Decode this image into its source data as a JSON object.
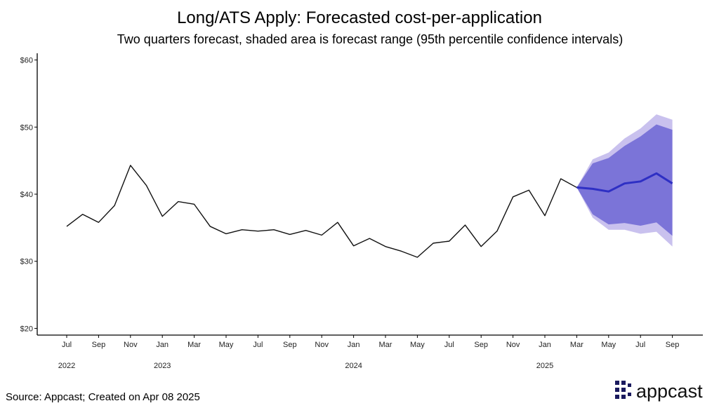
{
  "header": {
    "title": "Long/ATS Apply: Forecasted cost-per-application",
    "subtitle": "Two quarters forecast, shaded area is forecast range (95th percentile confidence intervals)"
  },
  "footer": {
    "source": "Source: Appcast; Created on Apr 08 2025",
    "logo_text": "appcast"
  },
  "colors": {
    "history": "#111111",
    "forecast_line": "#2e2fc4",
    "inner_band": "#7b74d8",
    "outer_band": "#c9c1ee"
  },
  "chart_data": {
    "type": "line",
    "x_unit": "month",
    "ylim": [
      19,
      61
    ],
    "y_ticks": [
      20,
      30,
      40,
      50,
      60
    ],
    "y_tick_labels": [
      "$20",
      "$30",
      "$40",
      "$50",
      "$60"
    ],
    "x_tick_labels": [
      "Jul",
      "Sep",
      "Nov",
      "Jan",
      "Mar",
      "May",
      "Jul",
      "Sep",
      "Nov",
      "Jan",
      "Mar",
      "May",
      "Jul",
      "Sep",
      "Nov",
      "Jan",
      "Mar",
      "May",
      "Jul",
      "Sep"
    ],
    "x_tick_months": [
      "2022-07",
      "2022-09",
      "2022-11",
      "2023-01",
      "2023-03",
      "2023-05",
      "2023-07",
      "2023-09",
      "2023-11",
      "2024-01",
      "2024-03",
      "2024-05",
      "2024-07",
      "2024-09",
      "2024-11",
      "2025-01",
      "2025-03",
      "2025-05",
      "2025-07",
      "2025-09"
    ],
    "year_labels": [
      {
        "label": "2022",
        "month": "2022-07"
      },
      {
        "label": "2023",
        "month": "2023-01"
      },
      {
        "label": "2024",
        "month": "2024-01"
      },
      {
        "label": "2025",
        "month": "2025-01"
      }
    ],
    "grid": false,
    "series": [
      {
        "x": [
          "2022-07",
          "2022-08",
          "2022-09",
          "2022-10",
          "2022-11",
          "2022-12",
          "2023-01",
          "2023-02",
          "2023-03",
          "2023-04",
          "2023-05",
          "2023-06",
          "2023-07",
          "2023-08",
          "2023-09",
          "2023-10",
          "2023-11",
          "2023-12",
          "2024-01",
          "2024-02",
          "2024-03",
          "2024-04",
          "2024-05",
          "2024-06",
          "2024-07",
          "2024-08",
          "2024-09",
          "2024-10",
          "2024-11",
          "2024-12",
          "2025-01",
          "2025-02",
          "2025-03"
        ],
        "values": [
          35.2,
          37.0,
          35.8,
          38.3,
          44.3,
          41.3,
          36.7,
          38.9,
          38.5,
          35.2,
          34.1,
          34.7,
          34.5,
          34.7,
          34.0,
          34.6,
          33.9,
          35.8,
          32.3,
          33.4,
          32.2,
          31.5,
          30.6,
          32.7,
          33.0,
          35.4,
          32.2,
          34.5,
          39.6,
          40.6,
          36.8,
          42.3,
          41.0
        ]
      },
      {
        "x": [
          "2025-03",
          "2025-04",
          "2025-05",
          "2025-06",
          "2025-07",
          "2025-08",
          "2025-09"
        ],
        "values": [
          41.0,
          40.8,
          40.4,
          41.6,
          41.9,
          43.1,
          41.6
        ]
      }
    ],
    "bands": [
      {
        "x": [
          "2025-03",
          "2025-04",
          "2025-05",
          "2025-06",
          "2025-07",
          "2025-08",
          "2025-09"
        ],
        "lower": [
          41.0,
          36.5,
          34.7,
          34.7,
          34.1,
          34.4,
          32.2
        ],
        "upper": [
          41.0,
          45.2,
          46.2,
          48.3,
          49.8,
          51.9,
          51.1
        ]
      },
      {
        "x": [
          "2025-03",
          "2025-04",
          "2025-05",
          "2025-06",
          "2025-07",
          "2025-08",
          "2025-09"
        ],
        "lower": [
          41.0,
          37.0,
          35.5,
          35.7,
          35.3,
          35.8,
          33.8
        ],
        "upper": [
          41.0,
          44.6,
          45.4,
          47.2,
          48.6,
          50.4,
          49.6
        ]
      }
    ]
  }
}
